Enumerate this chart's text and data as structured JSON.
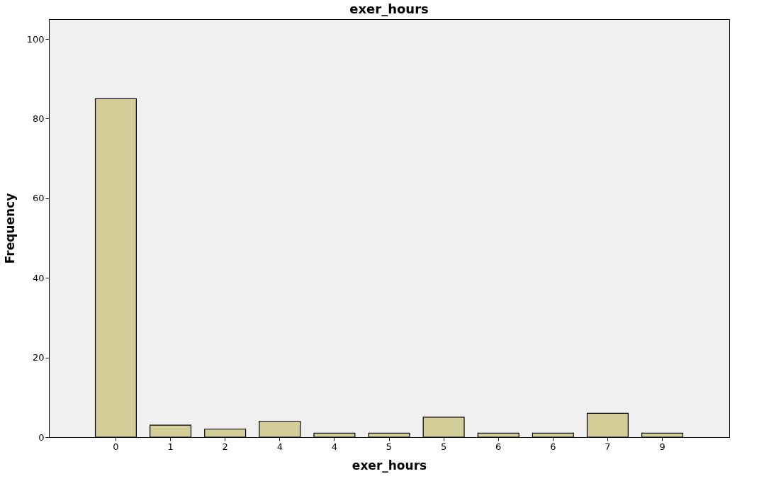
{
  "chart_data": {
    "type": "bar",
    "title": "exer_hours",
    "xlabel": "exer_hours",
    "ylabel": "Frequency",
    "categories": [
      "0",
      "1",
      "2",
      "4",
      "4",
      "5",
      "5",
      "6",
      "6",
      "7",
      "9"
    ],
    "values": [
      85,
      3,
      2,
      4,
      1,
      1,
      5,
      1,
      1,
      6,
      1
    ],
    "color": "#d3ce97",
    "ylim": [
      0,
      105
    ],
    "yticks": [
      0,
      20,
      40,
      60,
      80,
      100
    ],
    "grid": false
  }
}
